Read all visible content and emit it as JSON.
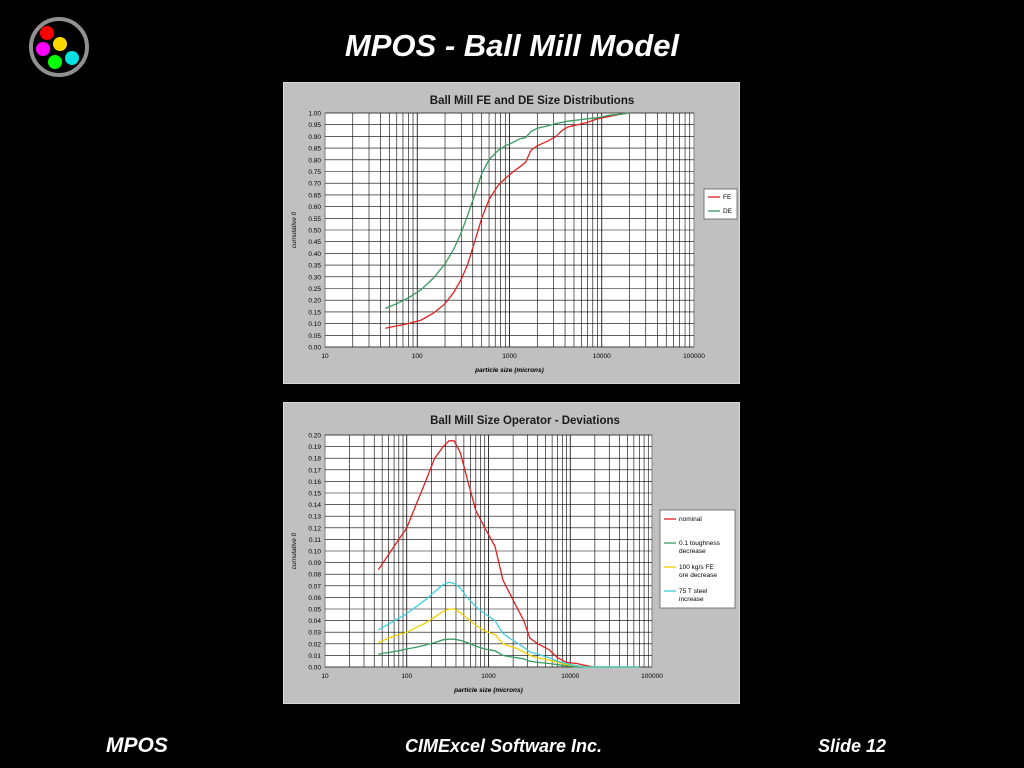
{
  "slide": {
    "title": "MPOS - Ball Mill Model",
    "footer_left": "MPOS",
    "footer_center": "CIMExcel Software Inc.",
    "footer_right": "Slide 12",
    "logo_icon": "color-dots-logo-icon",
    "logo_colors": [
      "#ff0000",
      "#ffd700",
      "#ff00ff",
      "#00ff00",
      "#00e0e0"
    ]
  },
  "chart_data": [
    {
      "type": "line",
      "title": "Ball Mill FE and DE Size Distributions",
      "xlabel": "particle size  (microns)",
      "ylabel": "cumulative 0",
      "xscale": "log",
      "xlim": [
        10,
        100000
      ],
      "ylim": [
        0,
        1
      ],
      "x_ticks": [
        "10",
        "100",
        "1000",
        "10000",
        "100000"
      ],
      "y_ticks": [
        "0.00",
        "0.05",
        "0.10",
        "0.15",
        "0.20",
        "0.25",
        "0.30",
        "0.35",
        "0.40",
        "0.45",
        "0.50",
        "0.55",
        "0.60",
        "0.65",
        "0.70",
        "0.75",
        "0.80",
        "0.85",
        "0.90",
        "0.95",
        "1.00"
      ],
      "grid": true,
      "legend": "right",
      "series": [
        {
          "name": "FE",
          "color": "#e02020",
          "x": [
            45,
            60,
            80,
            110,
            150,
            200,
            250,
            300,
            350,
            420,
            500,
            600,
            750,
            900,
            1100,
            1300,
            1500,
            1700,
            2000,
            2600,
            3200,
            3700,
            4300,
            5500,
            7000,
            9000,
            12000,
            16000,
            20000
          ],
          "y": [
            0.08,
            0.09,
            0.1,
            0.115,
            0.145,
            0.185,
            0.235,
            0.29,
            0.35,
            0.45,
            0.55,
            0.63,
            0.69,
            0.72,
            0.75,
            0.77,
            0.79,
            0.84,
            0.86,
            0.88,
            0.9,
            0.925,
            0.94,
            0.95,
            0.96,
            0.975,
            0.985,
            0.995,
            1.0
          ]
        },
        {
          "name": "DE",
          "color": "#3a9a60",
          "x": [
            45,
            60,
            80,
            110,
            150,
            200,
            250,
            300,
            350,
            420,
            500,
            600,
            750,
            900,
            1100,
            1300,
            1500,
            1700,
            2000,
            2600,
            3200,
            3700,
            4300,
            5500,
            7000,
            9000,
            12000,
            16000,
            20000
          ],
          "y": [
            0.165,
            0.185,
            0.21,
            0.245,
            0.295,
            0.355,
            0.42,
            0.49,
            0.56,
            0.65,
            0.74,
            0.8,
            0.84,
            0.86,
            0.875,
            0.89,
            0.895,
            0.92,
            0.935,
            0.945,
            0.955,
            0.96,
            0.965,
            0.97,
            0.975,
            0.98,
            0.99,
            0.995,
            1.0
          ]
        }
      ]
    },
    {
      "type": "line",
      "title": "Ball Mill Size Operator - Deviations",
      "xlabel": "particle size  (microns)",
      "ylabel": "cumulative 0",
      "xscale": "log",
      "xlim": [
        10,
        100000
      ],
      "ylim": [
        0,
        0.2
      ],
      "x_ticks": [
        "10",
        "100",
        "1000",
        "10000",
        "100000"
      ],
      "y_ticks": [
        "0.00",
        "0.01",
        "0.02",
        "0.03",
        "0.04",
        "0.05",
        "0.06",
        "0.07",
        "0.08",
        "0.09",
        "0.10",
        "0.11",
        "0.12",
        "0.13",
        "0.14",
        "0.15",
        "0.16",
        "0.17",
        "0.18",
        "0.19",
        "0.20"
      ],
      "grid": true,
      "legend": "right",
      "series": [
        {
          "name": "nominal",
          "color": "#e02020",
          "x": [
            45,
            60,
            80,
            100,
            130,
            170,
            220,
            280,
            330,
            380,
            450,
            550,
            700,
            900,
            1200,
            1500,
            1800,
            2200,
            2700,
            3200,
            4000,
            5500,
            7000,
            9000,
            12000,
            16000,
            20000,
            30000,
            50000,
            70000
          ],
          "y": [
            0.084,
            0.097,
            0.11,
            0.12,
            0.14,
            0.16,
            0.18,
            0.19,
            0.195,
            0.195,
            0.185,
            0.162,
            0.135,
            0.12,
            0.104,
            0.075,
            0.064,
            0.052,
            0.04,
            0.025,
            0.02,
            0.015,
            0.008,
            0.004,
            0.003,
            0.001,
            0.0,
            0.0,
            0.0,
            0.0
          ]
        },
        {
          "name": "0.1 toughness decrease",
          "color": "#3a9a60",
          "x": [
            45,
            60,
            80,
            100,
            130,
            170,
            220,
            280,
            330,
            380,
            450,
            550,
            700,
            900,
            1200,
            1500,
            1800,
            2200,
            2700,
            3200,
            4000,
            5500,
            7000,
            9000,
            12000,
            16000,
            20000,
            30000,
            50000,
            70000
          ],
          "y": [
            0.011,
            0.0125,
            0.014,
            0.0155,
            0.017,
            0.019,
            0.021,
            0.0235,
            0.024,
            0.024,
            0.023,
            0.021,
            0.018,
            0.0155,
            0.014,
            0.01,
            0.009,
            0.008,
            0.007,
            0.005,
            0.004,
            0.003,
            0.002,
            0.001,
            0.0,
            0.0,
            0.0,
            0.0,
            0.0,
            0.0
          ]
        },
        {
          "name": "100 kg/s FE ore decrease",
          "color": "#f0d000",
          "x": [
            45,
            60,
            80,
            100,
            130,
            170,
            220,
            280,
            330,
            380,
            450,
            550,
            700,
            900,
            1200,
            1500,
            1800,
            2200,
            2700,
            3200,
            4000,
            5500,
            7000,
            9000,
            12000,
            16000,
            20000,
            30000,
            50000,
            70000
          ],
          "y": [
            0.021,
            0.025,
            0.028,
            0.03,
            0.034,
            0.038,
            0.043,
            0.048,
            0.05,
            0.05,
            0.047,
            0.042,
            0.036,
            0.031,
            0.028,
            0.02,
            0.018,
            0.016,
            0.013,
            0.01,
            0.008,
            0.006,
            0.004,
            0.002,
            0.001,
            0.0,
            0.0,
            0.0,
            0.0,
            0.0
          ]
        },
        {
          "name": "75 T steel increase",
          "color": "#40d0e0",
          "x": [
            45,
            60,
            80,
            100,
            130,
            170,
            220,
            280,
            330,
            380,
            450,
            550,
            700,
            900,
            1200,
            1500,
            1800,
            2200,
            2700,
            3200,
            4000,
            5500,
            7000,
            9000,
            12000,
            16000,
            20000,
            30000,
            50000,
            70000
          ],
          "y": [
            0.032,
            0.037,
            0.042,
            0.046,
            0.052,
            0.058,
            0.065,
            0.071,
            0.073,
            0.072,
            0.068,
            0.06,
            0.052,
            0.046,
            0.04,
            0.029,
            0.025,
            0.021,
            0.017,
            0.013,
            0.011,
            0.008,
            0.005,
            0.003,
            0.001,
            0.0,
            0.0,
            0.0,
            0.0,
            0.0
          ]
        }
      ]
    }
  ]
}
